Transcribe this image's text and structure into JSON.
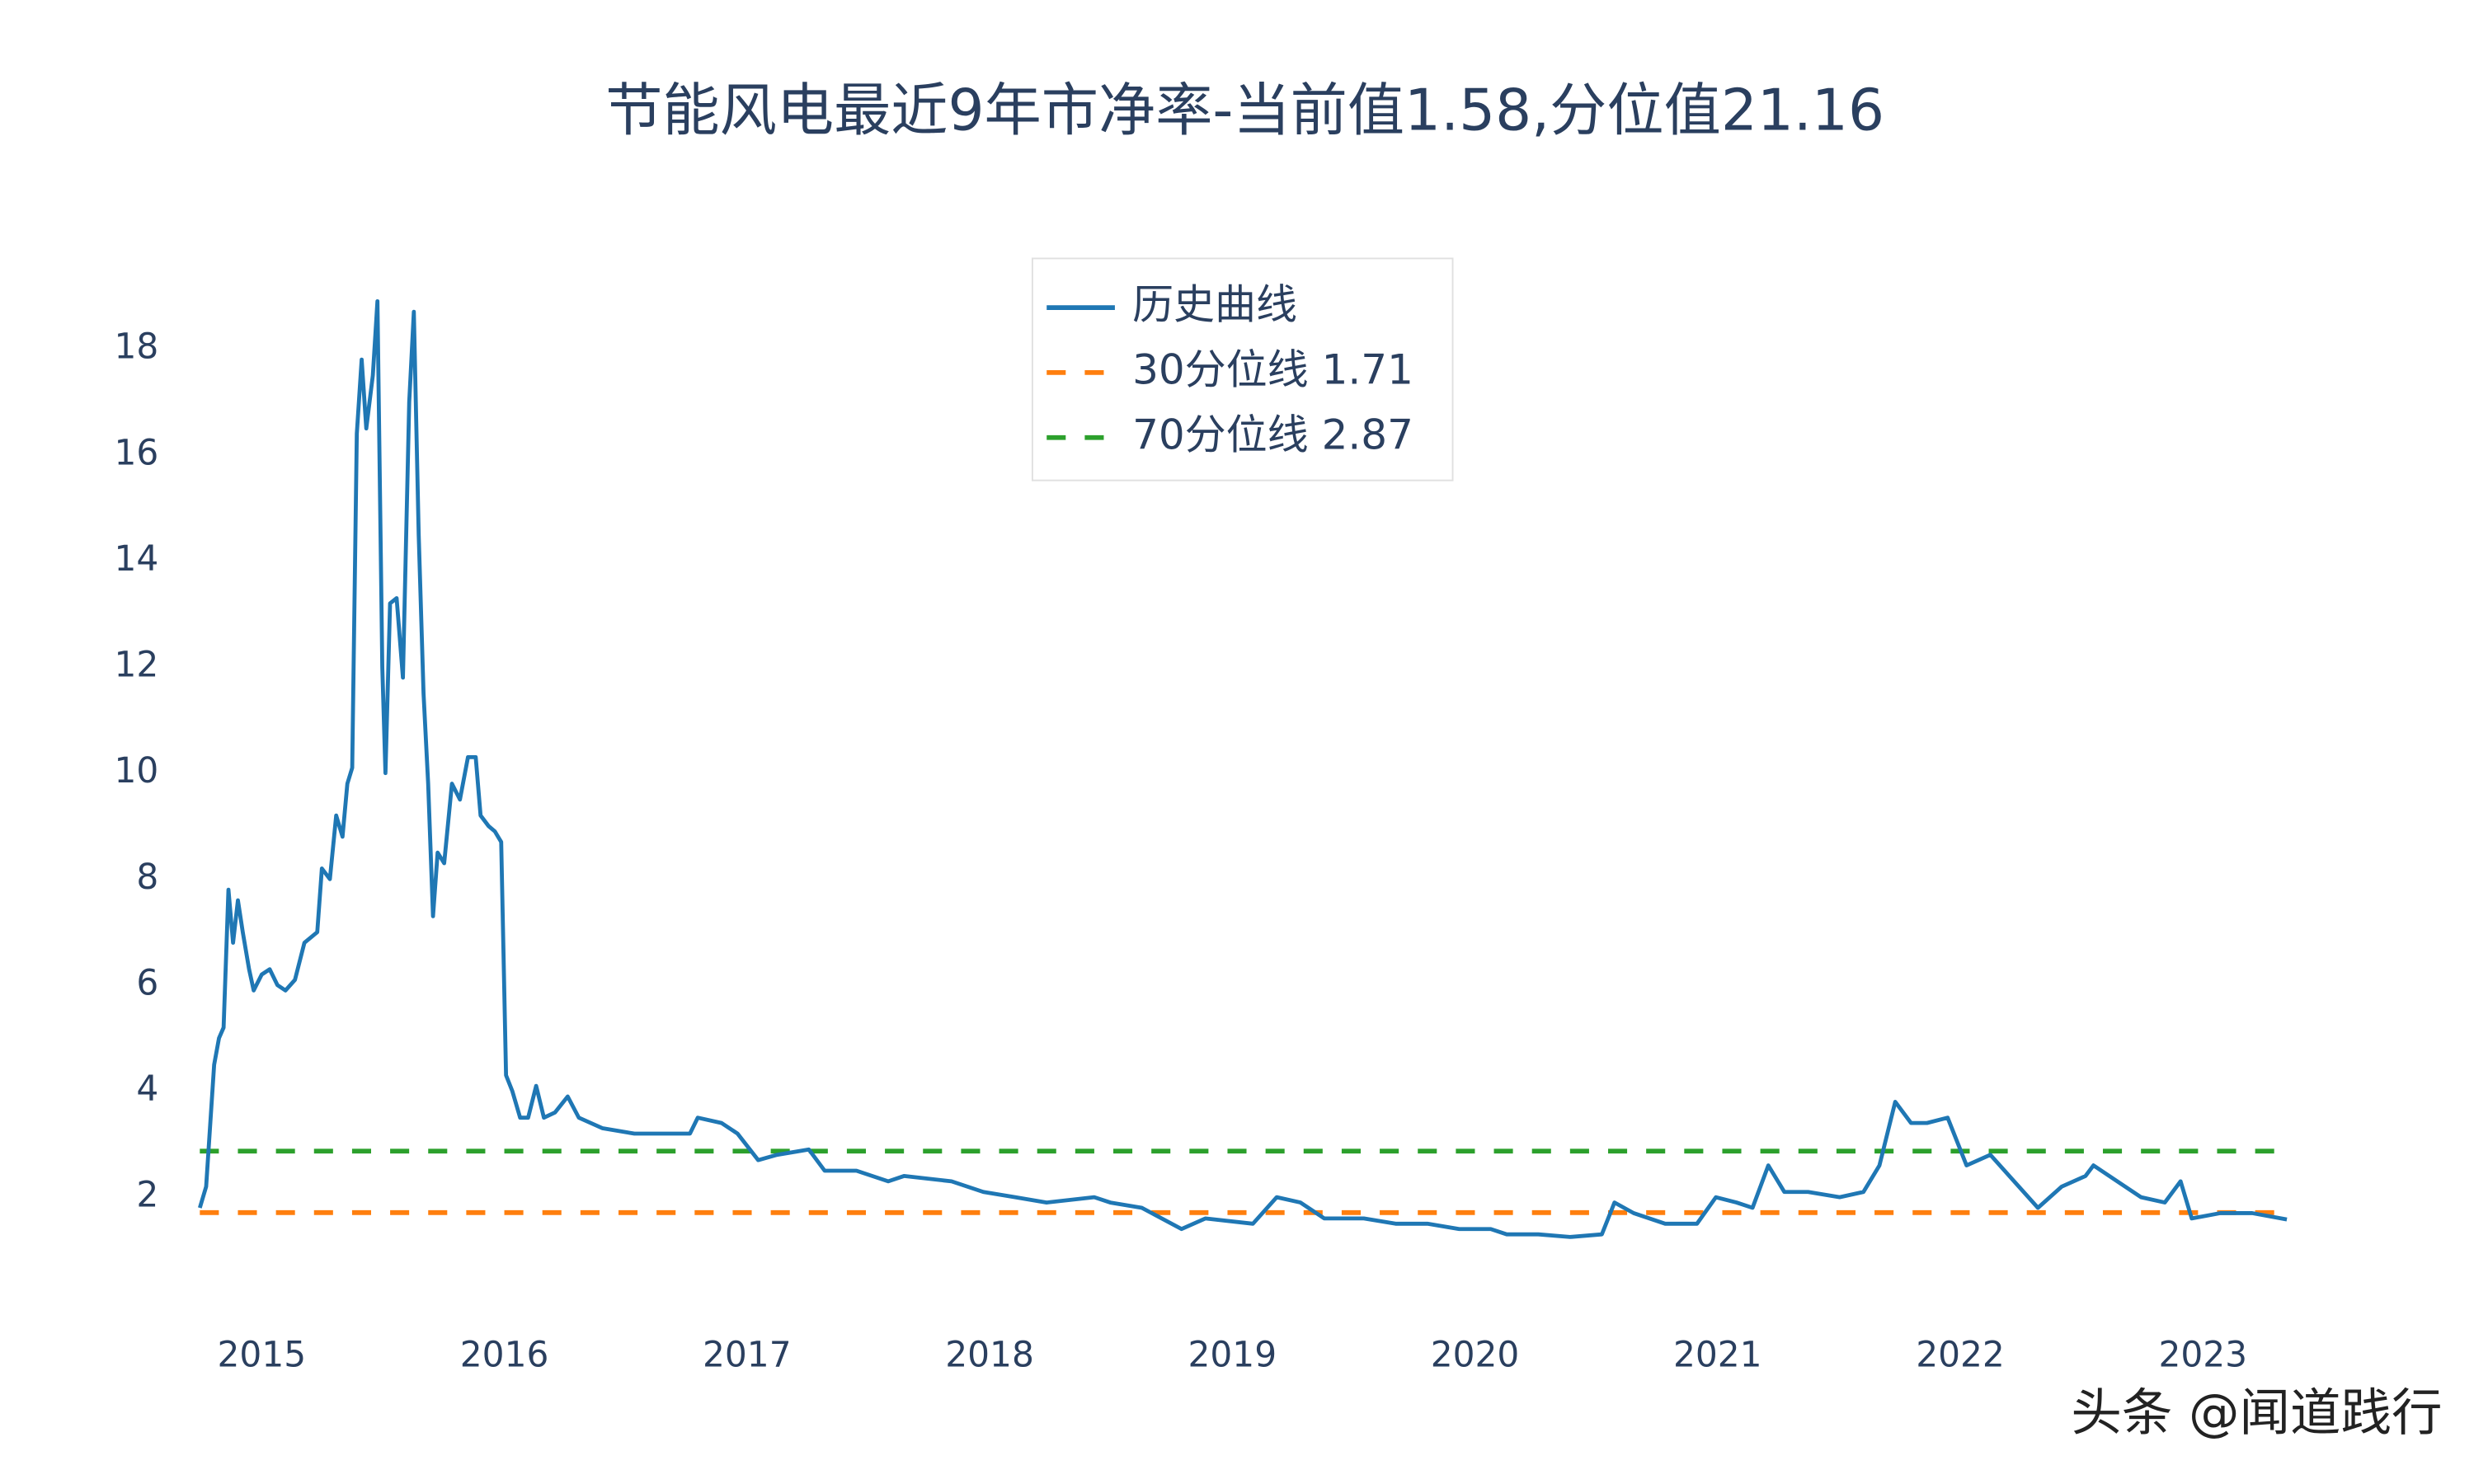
{
  "chart_data": {
    "type": "line",
    "title": "节能风电最近9年市净率-当前值1.58,分位值21.16",
    "x": [
      2014.745,
      2014.771,
      2014.804,
      2014.824,
      2014.843,
      2014.863,
      2014.882,
      2014.902,
      2014.922,
      2014.948,
      2014.967,
      2015,
      2015.033,
      2015.065,
      2015.098,
      2015.137,
      2015.176,
      2015.229,
      2015.248,
      2015.281,
      2015.307,
      2015.333,
      2015.353,
      2015.373,
      2015.392,
      2015.412,
      2015.431,
      2015.458,
      2015.477,
      2015.497,
      2015.51,
      2015.529,
      2015.556,
      2015.582,
      2015.608,
      2015.627,
      2015.647,
      2015.667,
      2015.686,
      2015.706,
      2015.725,
      2015.752,
      2015.784,
      2015.817,
      2015.85,
      2015.882,
      2015.902,
      2015.935,
      2015.961,
      2015.987,
      2016.007,
      2016.033,
      2016.065,
      2016.098,
      2016.131,
      2016.163,
      2016.209,
      2016.261,
      2016.307,
      2016.405,
      2016.536,
      2016.667,
      2016.765,
      2016.797,
      2016.895,
      2016.961,
      2017.046,
      2017.124,
      2017.255,
      2017.32,
      2017.451,
      2017.582,
      2017.647,
      2017.843,
      2017.974,
      2018.105,
      2018.235,
      2018.431,
      2018.497,
      2018.627,
      2018.791,
      2018.889,
      2019.085,
      2019.183,
      2019.281,
      2019.379,
      2019.542,
      2019.673,
      2019.804,
      2019.935,
      2020.065,
      2020.131,
      2020.261,
      2020.392,
      2020.523,
      2020.575,
      2020.654,
      2020.784,
      2020.915,
      2020.993,
      2021.078,
      2021.144,
      2021.209,
      2021.275,
      2021.373,
      2021.503,
      2021.601,
      2021.667,
      2021.732,
      2021.797,
      2021.863,
      2021.948,
      2022.026,
      2022.124,
      2022.222,
      2022.32,
      2022.418,
      2022.516,
      2022.549,
      2022.647,
      2022.745,
      2022.843,
      2022.908,
      2022.954,
      2023.072,
      2023.203,
      2023.346
    ],
    "series": [
      {
        "name": "历史曲线",
        "color": "#1f77b4",
        "dash": "solid",
        "values": [
          1.8,
          2.2,
          4.5,
          5.0,
          5.2,
          7.8,
          6.8,
          7.6,
          7.0,
          6.3,
          5.9,
          6.2,
          6.3,
          6.0,
          5.9,
          6.1,
          6.8,
          7.0,
          8.2,
          8.0,
          9.2,
          8.8,
          9.8,
          10.1,
          16.4,
          17.8,
          16.5,
          17.5,
          18.9,
          12.0,
          10.0,
          13.2,
          13.3,
          11.8,
          17.0,
          18.7,
          14.5,
          11.5,
          9.8,
          7.3,
          8.5,
          8.3,
          9.8,
          9.5,
          10.3,
          10.3,
          9.2,
          9.0,
          8.9,
          8.7,
          4.3,
          4.0,
          3.5,
          3.5,
          4.1,
          3.5,
          3.6,
          3.9,
          3.5,
          3.3,
          3.2,
          3.2,
          3.2,
          3.5,
          3.4,
          3.2,
          2.7,
          2.8,
          2.9,
          2.5,
          2.5,
          2.3,
          2.4,
          2.3,
          2.1,
          2.0,
          1.9,
          2.0,
          1.9,
          1.8,
          1.4,
          1.6,
          1.5,
          2.0,
          1.9,
          1.6,
          1.6,
          1.5,
          1.5,
          1.4,
          1.4,
          1.3,
          1.3,
          1.25,
          1.3,
          1.9,
          1.7,
          1.5,
          1.5,
          2.0,
          1.9,
          1.8,
          2.6,
          2.1,
          2.1,
          2.0,
          2.1,
          2.6,
          3.8,
          3.4,
          3.4,
          3.5,
          2.6,
          2.8,
          2.3,
          1.8,
          2.2,
          2.4,
          2.6,
          2.3,
          2.0,
          1.9,
          2.3,
          1.6,
          1.7,
          1.7,
          1.58
        ]
      },
      {
        "name": "30分位线 1.71",
        "color": "#ff7f0e",
        "dash": "dash",
        "x": [
          2014.745,
          2023.346
        ],
        "values": [
          1.71,
          1.71
        ]
      },
      {
        "name": "70分位线 2.87",
        "color": "#2ca02c",
        "dash": "dash",
        "x": [
          2014.745,
          2023.346
        ],
        "values": [
          2.87,
          2.87
        ]
      }
    ],
    "xlim": [
      2014.745,
      2023.346
    ],
    "xticks": [
      2015,
      2016,
      2017,
      2018,
      2019,
      2020,
      2021,
      2022,
      2023
    ],
    "ylim": [
      0.3,
      19.3
    ],
    "yticks": [
      2,
      4,
      6,
      8,
      10,
      12,
      14,
      16,
      18
    ],
    "grid": false,
    "legend": "top",
    "watermark": "头条 @闻道践行"
  }
}
